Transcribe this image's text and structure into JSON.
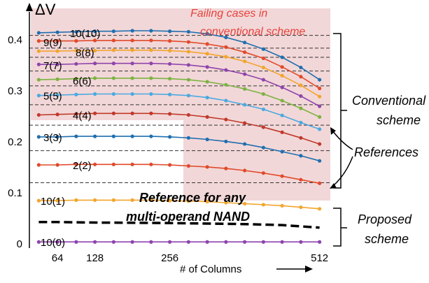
{
  "chart_data": {
    "type": "line",
    "ylabel": "ΔV",
    "xlabel": "# of Columns",
    "x_ticks": [
      64,
      128,
      256,
      512
    ],
    "y_ticks": [
      0,
      0.1,
      0.2,
      0.3,
      0.4
    ],
    "x": [
      32,
      64,
      96,
      128,
      160,
      192,
      224,
      256,
      288,
      320,
      352,
      384,
      416,
      448,
      480,
      512
    ],
    "xlim": [
      16,
      528
    ],
    "ylim": [
      -0.008,
      0.455
    ],
    "grid": false,
    "series": [
      {
        "name": "10(10)",
        "color": "#1f6fb0",
        "values": [
          0.414,
          0.415,
          0.416,
          0.417,
          0.417,
          0.418,
          0.418,
          0.417,
          0.416,
          0.412,
          0.405,
          0.395,
          0.382,
          0.366,
          0.346,
          0.322
        ]
      },
      {
        "name": "9(9)",
        "color": "#e04a2a",
        "values": [
          0.398,
          0.398,
          0.398,
          0.399,
          0.399,
          0.399,
          0.399,
          0.398,
          0.396,
          0.392,
          0.386,
          0.376,
          0.364,
          0.347,
          0.328,
          0.305
        ]
      },
      {
        "name": "8(8)",
        "color": "#f2a52d",
        "values": [
          0.378,
          0.378,
          0.379,
          0.379,
          0.38,
          0.38,
          0.38,
          0.379,
          0.377,
          0.373,
          0.367,
          0.358,
          0.346,
          0.33,
          0.311,
          0.289
        ]
      },
      {
        "name": "7(7)",
        "color": "#8e44ad",
        "values": [
          0.352,
          0.352,
          0.353,
          0.354,
          0.354,
          0.354,
          0.354,
          0.353,
          0.351,
          0.347,
          0.341,
          0.333,
          0.322,
          0.307,
          0.29,
          0.27
        ]
      },
      {
        "name": "6(6)",
        "color": "#7cb342",
        "values": [
          0.322,
          0.323,
          0.324,
          0.325,
          0.325,
          0.325,
          0.325,
          0.324,
          0.322,
          0.318,
          0.312,
          0.304,
          0.294,
          0.281,
          0.266,
          0.249
        ]
      },
      {
        "name": "5(5)",
        "color": "#4aa9e0",
        "values": [
          0.291,
          0.292,
          0.293,
          0.294,
          0.294,
          0.294,
          0.294,
          0.293,
          0.291,
          0.287,
          0.281,
          0.273,
          0.264,
          0.252,
          0.238,
          0.225
        ]
      },
      {
        "name": "4(4)",
        "color": "#c0392b",
        "values": [
          0.253,
          0.254,
          0.255,
          0.256,
          0.256,
          0.256,
          0.256,
          0.255,
          0.253,
          0.249,
          0.244,
          0.237,
          0.229,
          0.219,
          0.208,
          0.196
        ]
      },
      {
        "name": "3(3)",
        "color": "#1f6fb0",
        "values": [
          0.21,
          0.21,
          0.211,
          0.211,
          0.211,
          0.211,
          0.211,
          0.21,
          0.208,
          0.205,
          0.201,
          0.196,
          0.189,
          0.181,
          0.173,
          0.163
        ]
      },
      {
        "name": "2(2)",
        "color": "#e04a2a",
        "values": [
          0.155,
          0.155,
          0.156,
          0.156,
          0.156,
          0.156,
          0.156,
          0.155,
          0.153,
          0.151,
          0.148,
          0.144,
          0.139,
          0.133,
          0.126,
          0.119
        ]
      },
      {
        "name": "10(1)",
        "color": "#f2a52d",
        "values": [
          0.085,
          0.085,
          0.086,
          0.086,
          0.086,
          0.086,
          0.086,
          0.085,
          0.084,
          0.083,
          0.081,
          0.079,
          0.077,
          0.075,
          0.072,
          0.069
        ]
      },
      {
        "name": "10(0)",
        "color": "#8e44ad",
        "values": [
          0.004,
          0.004,
          0.004,
          0.004,
          0.004,
          0.004,
          0.004,
          0.004,
          0.004,
          0.004,
          0.004,
          0.004,
          0.004,
          0.004,
          0.004,
          0.004
        ]
      }
    ],
    "reference_lines": [
      0.409,
      0.384,
      0.366,
      0.339,
      0.31,
      0.273,
      0.233,
      0.183,
      0.12
    ],
    "nand_reference": {
      "x": [
        32,
        64,
        128,
        256,
        384,
        448,
        512
      ],
      "values": [
        0.043,
        0.043,
        0.042,
        0.041,
        0.039,
        0.037,
        0.032
      ]
    },
    "failing_region": {
      "color": "#e8b7b8",
      "label": "Failing cases in conventional scheme",
      "label_color": "#e8413b"
    },
    "annotations": {
      "nand_label": "Reference for any multi-operand NAND",
      "conventional": "Conventional scheme",
      "references": "References",
      "proposed": "Proposed scheme"
    }
  }
}
